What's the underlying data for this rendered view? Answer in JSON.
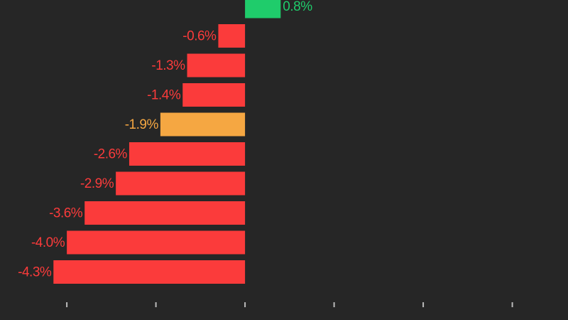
{
  "chart_data": {
    "type": "barh",
    "categories": [
      null,
      null,
      null,
      null,
      null,
      null,
      null,
      null,
      null,
      null
    ],
    "values": [
      0.8,
      -0.6,
      -1.3,
      -1.4,
      -1.9,
      -2.6,
      -2.9,
      -3.6,
      -4.0,
      -4.3
    ],
    "value_labels": [
      "0.8%",
      "-0.6%",
      "-1.3%",
      "-1.4%",
      "-1.9%",
      "-2.6%",
      "-2.9%",
      "-3.6%",
      "-4.0%",
      "-4.3%"
    ],
    "colors": [
      "#1fcc6b",
      "#fb3b3b",
      "#fb3b3b",
      "#fb3b3b",
      "#f5a742",
      "#fb3b3b",
      "#fb3b3b",
      "#fb3b3b",
      "#fb3b3b",
      "#fb3b3b"
    ],
    "xlim": [
      -5.5,
      7.25
    ],
    "xticks": [
      -4,
      -2,
      0,
      2,
      4,
      6
    ]
  }
}
